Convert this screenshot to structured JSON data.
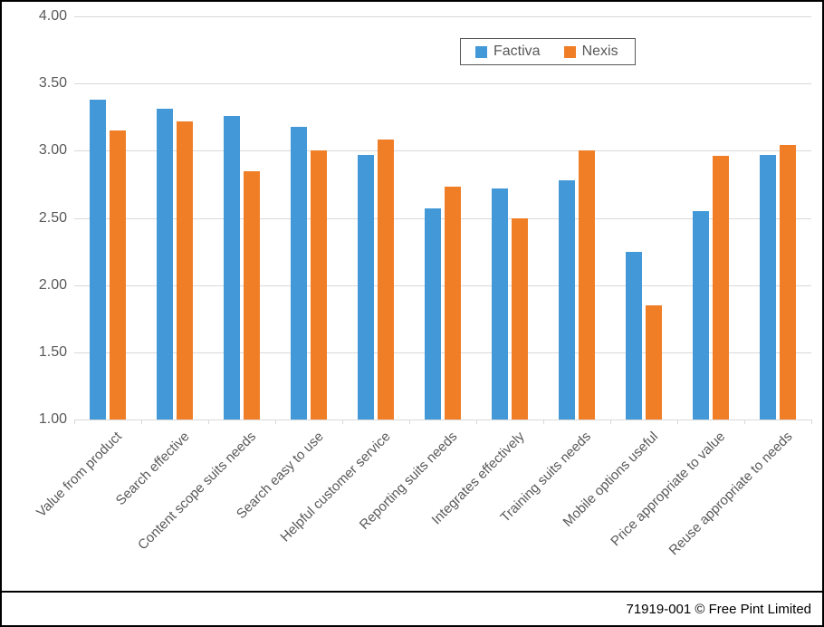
{
  "chart_data": {
    "type": "bar",
    "title": "",
    "categories": [
      "Value from product",
      "Search effective",
      "Content scope suits needs",
      "Search easy to use",
      "Helpful customer service",
      "Reporting suits needs",
      "Integrates effectively",
      "Training suits needs",
      "Mobile options useful",
      "Price appropriate to value",
      "Reuse appropriate to needs"
    ],
    "series": [
      {
        "name": "Factiva",
        "color": "#4399d8",
        "values": [
          3.38,
          3.31,
          3.26,
          3.18,
          2.97,
          2.57,
          2.72,
          2.78,
          2.25,
          2.55,
          2.97
        ]
      },
      {
        "name": "Nexis",
        "color": "#f07e27",
        "values": [
          3.15,
          3.22,
          2.85,
          3.0,
          3.08,
          2.73,
          2.5,
          3.0,
          1.85,
          2.96,
          3.04
        ]
      }
    ],
    "y_axis": {
      "min": 1.0,
      "max": 4.0,
      "tick_step": 0.5,
      "tick_labels": [
        "4.00",
        "3.50",
        "3.00",
        "2.50",
        "2.00",
        "1.50",
        "1.00"
      ]
    },
    "xlabel": "",
    "ylabel": "",
    "grid": true,
    "legend_position": "top-center"
  },
  "colors": {
    "gridline": "#d9d9d9",
    "axis_text": "#595959",
    "legend_border": "#595959",
    "frame_border": "#000000",
    "background": "#ffffff"
  },
  "footer": {
    "text": "71919-001 © Free Pint Limited"
  }
}
